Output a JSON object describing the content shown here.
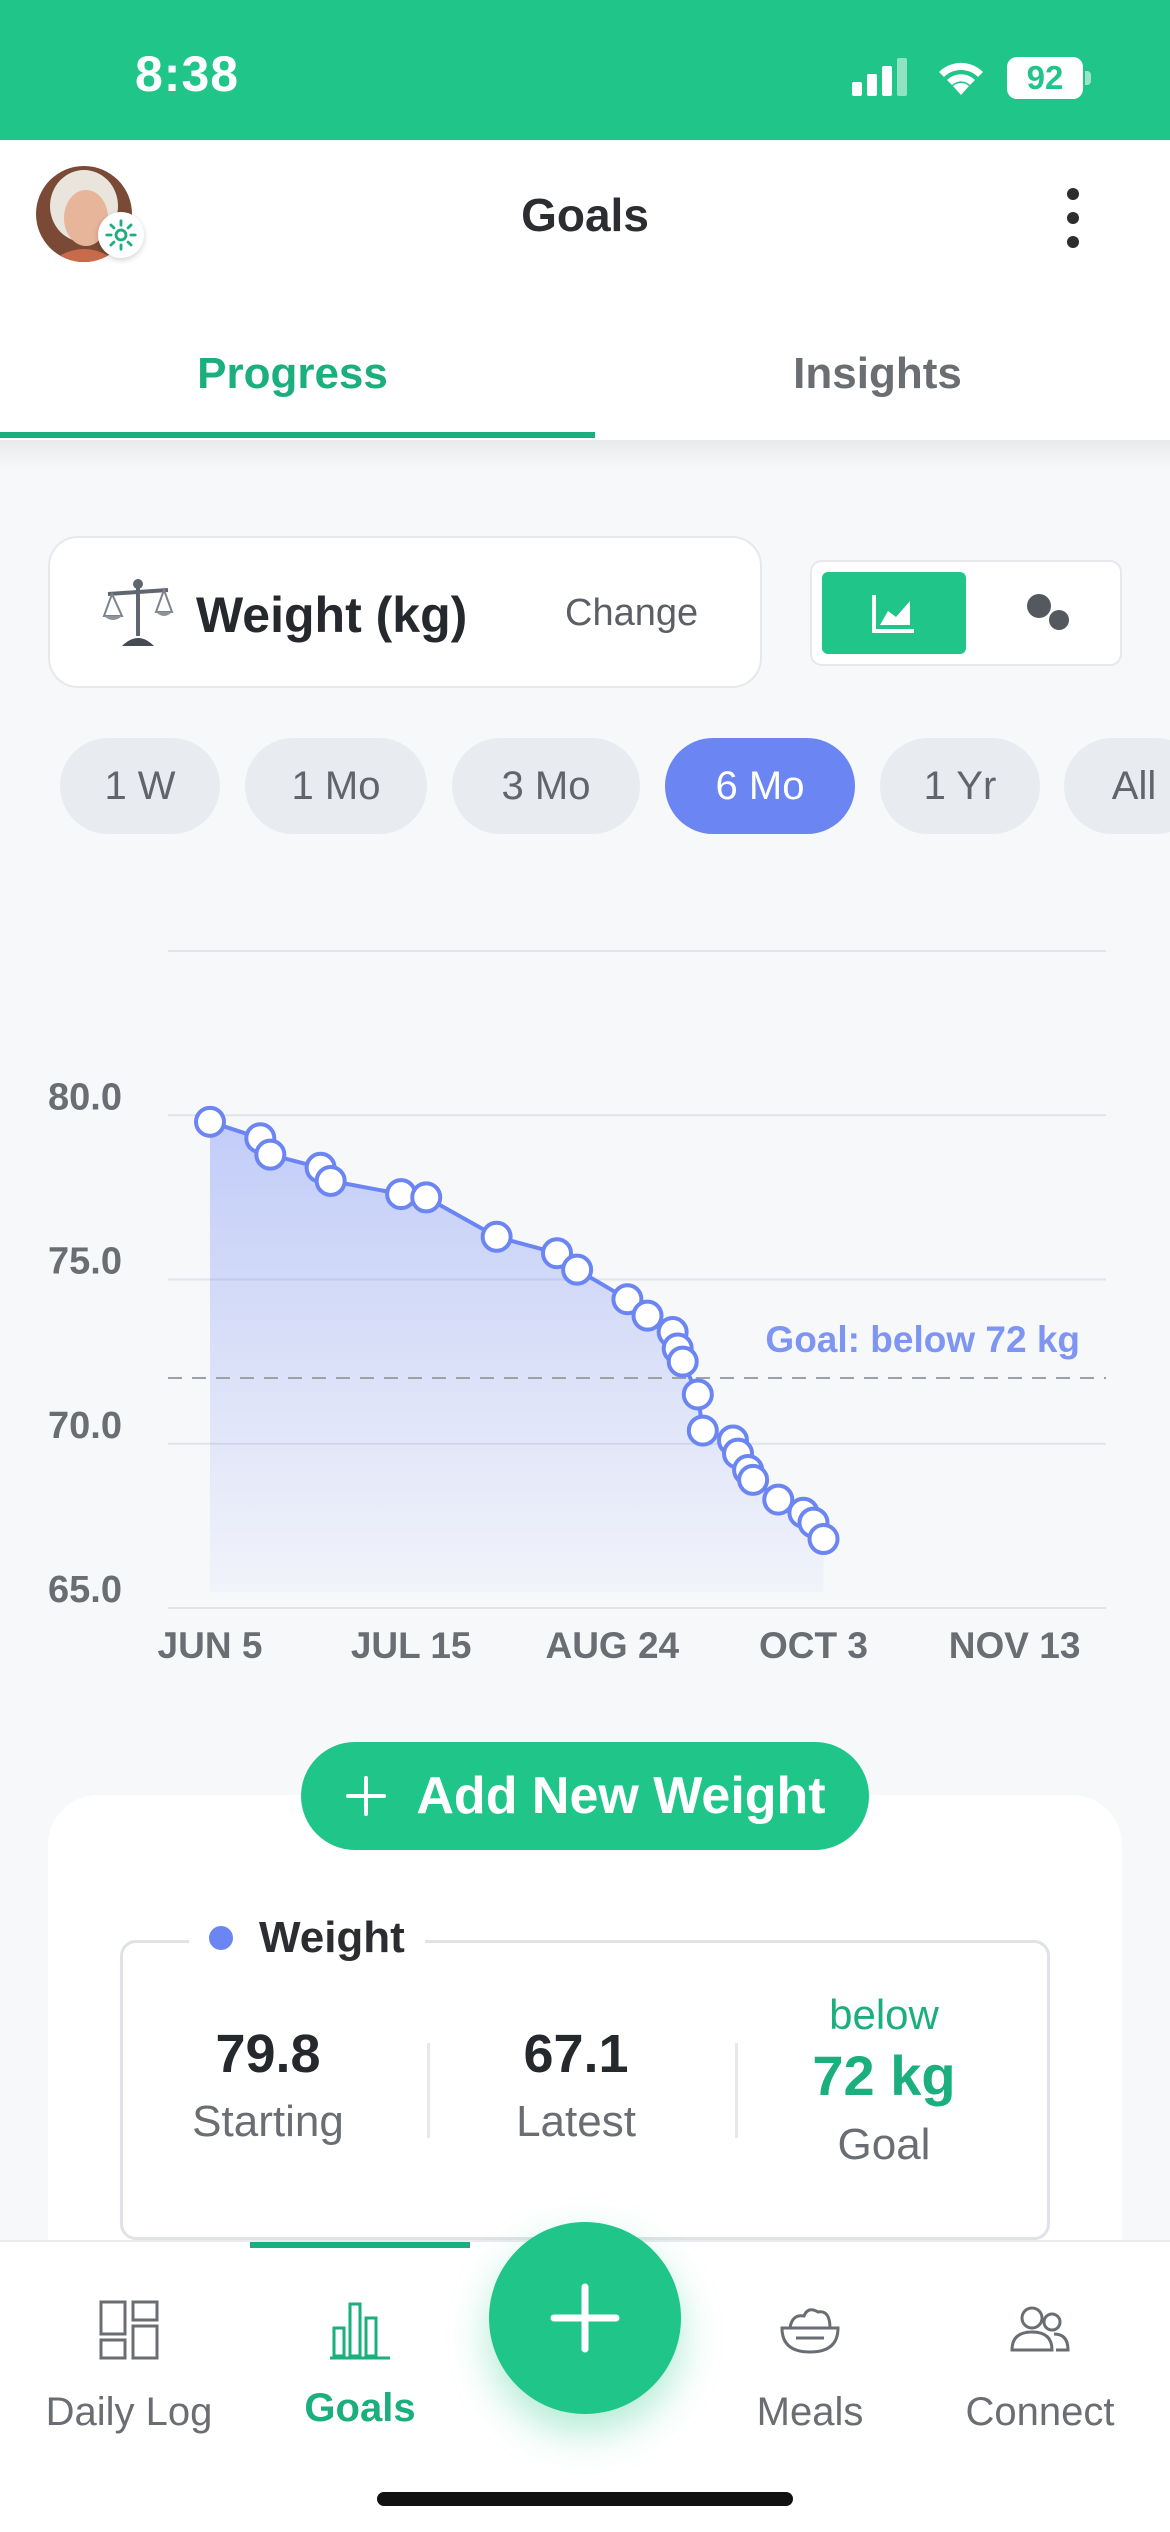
{
  "status_bar": {
    "time": "8:38",
    "battery": "92"
  },
  "header": {
    "title": "Goals"
  },
  "tabs": [
    {
      "label": "Progress",
      "active": true
    },
    {
      "label": "Insights",
      "active": false
    }
  ],
  "metric": {
    "label": "Weight (kg)",
    "change_label": "Change"
  },
  "ranges": [
    {
      "label": "1 W",
      "active": false
    },
    {
      "label": "1 Mo",
      "active": false
    },
    {
      "label": "3 Mo",
      "active": false
    },
    {
      "label": "6 Mo",
      "active": true
    },
    {
      "label": "1 Yr",
      "active": false
    },
    {
      "label": "All",
      "active": false
    }
  ],
  "chart_data": {
    "type": "area",
    "ylim": [
      65,
      85
    ],
    "yticks": [
      65.0,
      70.0,
      75.0,
      80.0
    ],
    "ytick_labels": [
      "65.0",
      "70.0",
      "75.0",
      "80.0"
    ],
    "x_range": [
      "2023-06-05",
      "2023-11-25"
    ],
    "x_tick_labels": [
      "JUN 5",
      "JUL 15",
      "AUG 24",
      "OCT 3",
      "NOV 13"
    ],
    "goal_line": {
      "value": 72,
      "label": "Goal: below 72 kg"
    },
    "series": [
      {
        "color": "#6b85f3",
        "points": [
          {
            "x": "2023-06-05",
            "y": 79.8
          },
          {
            "x": "2023-06-15",
            "y": 79.3
          },
          {
            "x": "2023-06-17",
            "y": 78.8
          },
          {
            "x": "2023-06-27",
            "y": 78.4
          },
          {
            "x": "2023-06-29",
            "y": 78.0
          },
          {
            "x": "2023-07-13",
            "y": 77.6
          },
          {
            "x": "2023-07-18",
            "y": 77.5
          },
          {
            "x": "2023-08-01",
            "y": 76.3
          },
          {
            "x": "2023-08-13",
            "y": 75.8
          },
          {
            "x": "2023-08-17",
            "y": 75.3
          },
          {
            "x": "2023-08-27",
            "y": 74.4
          },
          {
            "x": "2023-08-31",
            "y": 73.9
          },
          {
            "x": "2023-09-05",
            "y": 73.4
          },
          {
            "x": "2023-09-06",
            "y": 72.9
          },
          {
            "x": "2023-09-07",
            "y": 72.5
          },
          {
            "x": "2023-09-10",
            "y": 71.5
          },
          {
            "x": "2023-09-11",
            "y": 70.4
          },
          {
            "x": "2023-09-17",
            "y": 70.1
          },
          {
            "x": "2023-09-18",
            "y": 69.7
          },
          {
            "x": "2023-09-20",
            "y": 69.2
          },
          {
            "x": "2023-09-21",
            "y": 68.9
          },
          {
            "x": "2023-09-26",
            "y": 68.3
          },
          {
            "x": "2023-10-01",
            "y": 67.9
          },
          {
            "x": "2023-10-03",
            "y": 67.6
          },
          {
            "x": "2023-10-05",
            "y": 67.1
          }
        ]
      }
    ]
  },
  "add_button": {
    "label": "Add New Weight"
  },
  "summary": {
    "legend": "Weight",
    "starting": {
      "value": "79.8",
      "label": "Starting"
    },
    "latest": {
      "value": "67.1",
      "label": "Latest"
    },
    "goal": {
      "prefix": "below",
      "value": "72 kg",
      "label": "Goal"
    }
  },
  "nav": [
    {
      "label": "Daily Log",
      "icon": "daily-log-icon",
      "active": false
    },
    {
      "label": "Goals",
      "icon": "goals-bar-chart-icon",
      "active": true
    },
    {
      "label": "Meals",
      "icon": "meals-bowl-icon",
      "active": false
    },
    {
      "label": "Connect",
      "icon": "connect-people-icon",
      "active": false
    }
  ],
  "colors": {
    "brand": "#20c58a",
    "brand_text": "#1aaf7c",
    "series": "#6b85f3"
  }
}
